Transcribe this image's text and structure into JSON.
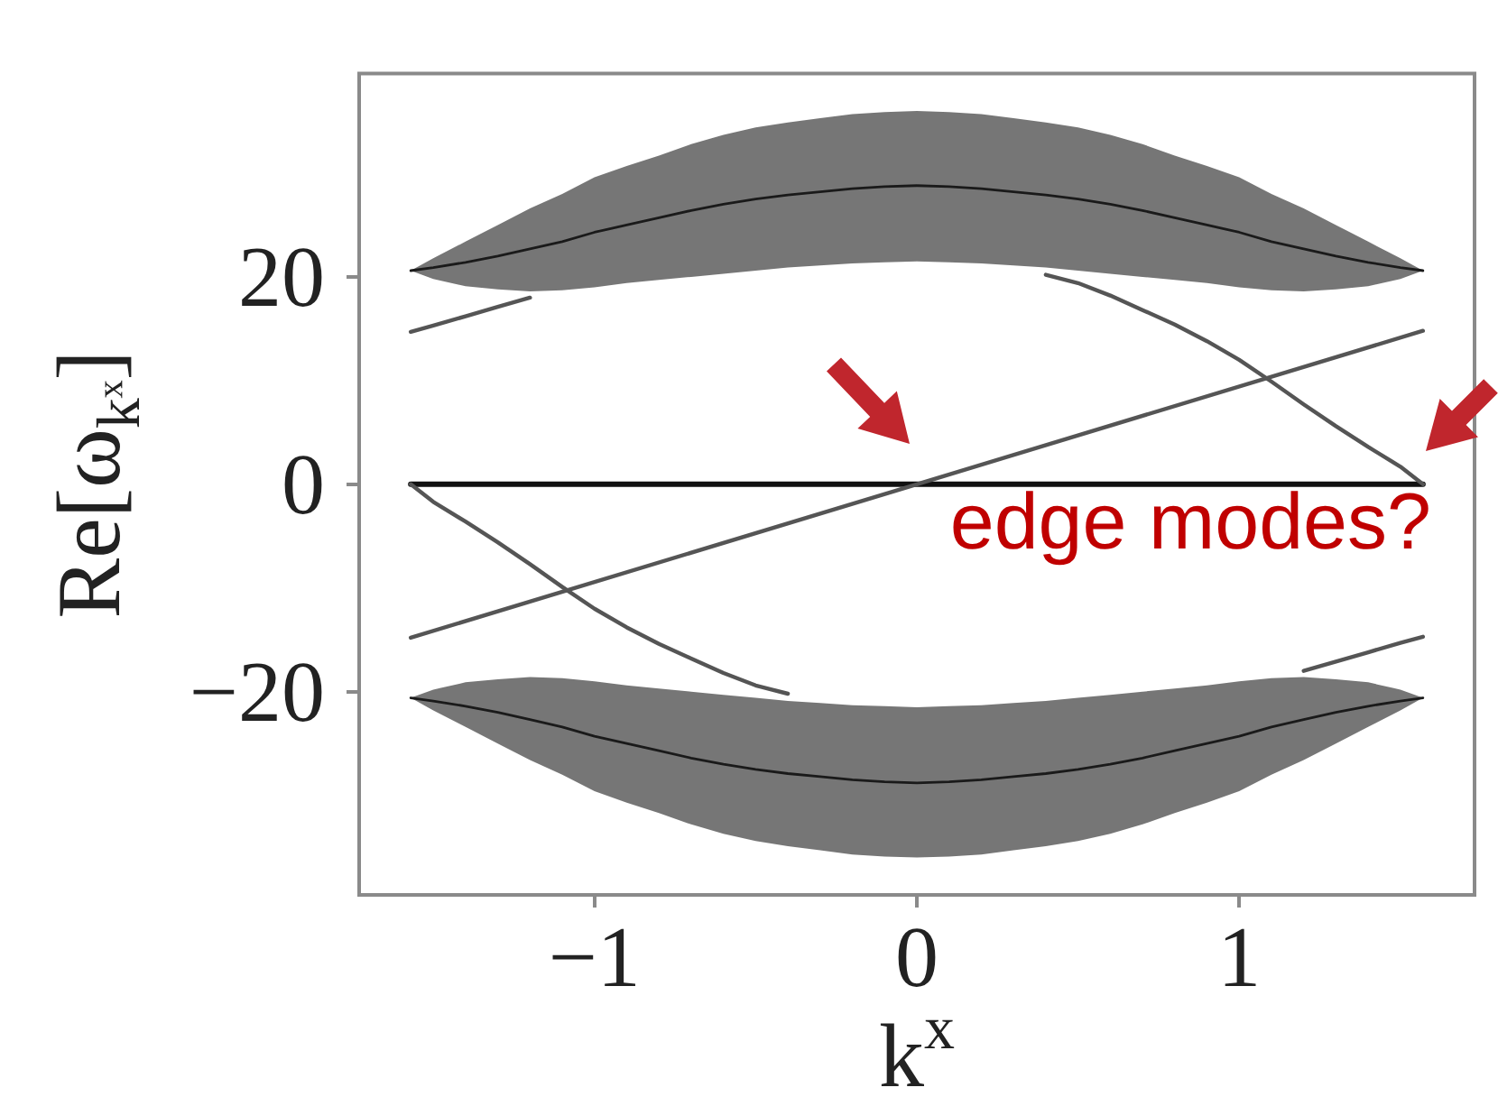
{
  "chart_data": {
    "type": "line",
    "xlabel": "k$^{x}$",
    "ylabel": "Re[ω$_{kˣ}$]",
    "annotations": [
      "edge modes?"
    ],
    "x": [
      -1.57,
      -1.5,
      -1.4,
      -1.3,
      -1.2,
      -1.1,
      -1.0,
      -0.9,
      -0.8,
      -0.7,
      -0.6,
      -0.5,
      -0.4,
      -0.3,
      -0.2,
      -0.1,
      0,
      0.1,
      0.2,
      0.3,
      0.4,
      0.5,
      0.6,
      0.7,
      0.8,
      0.9,
      1.0,
      1.1,
      1.2,
      1.3,
      1.4,
      1.5,
      1.57
    ],
    "xlim": [
      -1.73,
      1.73
    ],
    "xticks": [
      {
        "value": -1,
        "label": "−1"
      },
      0,
      1
    ],
    "ylim": [
      -39.6,
      39.6
    ],
    "yticks": [
      {
        "value": -20,
        "label": "−20"
      },
      0,
      20
    ],
    "marker": "none",
    "line_style": "solid",
    "series": [
      {
        "color": "#1a1a1a",
        "values": [
          20.6,
          20.9,
          21.4,
          22.0,
          22.7,
          23.4,
          24.3,
          25.0,
          25.7,
          26.4,
          27.0,
          27.5,
          27.9,
          28.2,
          28.5,
          28.7,
          28.8,
          28.7,
          28.5,
          28.2,
          27.9,
          27.5,
          27.0,
          26.4,
          25.7,
          25.0,
          24.3,
          23.4,
          22.7,
          22.0,
          21.4,
          20.9,
          20.6
        ],
        "lower": [
          20.6,
          19.8,
          19.1,
          18.8,
          18.6,
          18.7,
          19.0,
          19.4,
          19.7,
          20.0,
          20.3,
          20.6,
          20.9,
          21.1,
          21.3,
          21.4,
          21.5,
          21.4,
          21.3,
          21.1,
          20.9,
          20.6,
          20.3,
          20.0,
          19.7,
          19.4,
          19.0,
          18.7,
          18.6,
          18.8,
          19.1,
          19.8,
          20.6
        ],
        "upper": [
          20.6,
          21.8,
          23.4,
          25.0,
          26.6,
          28.0,
          29.6,
          30.7,
          31.7,
          32.8,
          33.7,
          34.4,
          34.9,
          35.3,
          35.7,
          35.9,
          36.0,
          35.9,
          35.7,
          35.3,
          34.9,
          34.4,
          33.7,
          32.8,
          31.7,
          30.7,
          29.6,
          28.0,
          26.6,
          25.0,
          23.4,
          21.8,
          20.6
        ]
      },
      {
        "color": "#1a1a1a",
        "values": [
          -20.6,
          -20.9,
          -21.4,
          -22.0,
          -22.7,
          -23.4,
          -24.3,
          -25.0,
          -25.7,
          -26.4,
          -27.0,
          -27.5,
          -27.9,
          -28.2,
          -28.5,
          -28.7,
          -28.8,
          -28.7,
          -28.5,
          -28.2,
          -27.9,
          -27.5,
          -27.0,
          -26.4,
          -25.7,
          -25.0,
          -24.3,
          -23.4,
          -22.7,
          -22.0,
          -21.4,
          -20.9,
          -20.6
        ],
        "lower": [
          -20.6,
          -21.8,
          -23.4,
          -25.0,
          -26.6,
          -28.0,
          -29.6,
          -30.7,
          -31.7,
          -32.8,
          -33.7,
          -34.4,
          -34.9,
          -35.3,
          -35.7,
          -35.9,
          -36.0,
          -35.9,
          -35.7,
          -35.3,
          -34.9,
          -34.4,
          -33.7,
          -32.8,
          -31.7,
          -30.7,
          -29.6,
          -28.0,
          -26.6,
          -25.0,
          -23.4,
          -21.8,
          -20.6
        ],
        "upper": [
          -20.6,
          -19.8,
          -19.1,
          -18.8,
          -18.6,
          -18.7,
          -19.0,
          -19.4,
          -19.7,
          -20.0,
          -20.3,
          -20.6,
          -20.9,
          -21.1,
          -21.3,
          -21.4,
          -21.5,
          -21.4,
          -21.3,
          -21.1,
          -20.9,
          -20.6,
          -20.3,
          -20.0,
          -19.7,
          -19.4,
          -19.0,
          -18.7,
          -18.6,
          -18.8,
          -19.1,
          -19.8,
          -20.6
        ]
      },
      {
        "color": "#555555",
        "values": [
          14.7,
          15.3,
          16.2,
          17.1,
          18.0,
          null,
          null,
          null,
          null,
          null,
          null,
          null,
          null,
          null,
          null,
          null,
          null,
          null,
          null,
          null,
          20.2,
          19.4,
          18.2,
          16.8,
          15.4,
          13.8,
          12.0,
          9.9,
          7.7,
          5.6,
          3.6,
          1.7,
          0
        ]
      },
      {
        "color": "#555555",
        "values": [
          0,
          -1.7,
          -3.6,
          -5.6,
          -7.7,
          -9.9,
          -12.0,
          -13.8,
          -15.4,
          -16.8,
          -18.2,
          -19.4,
          -20.2,
          null,
          null,
          null,
          null,
          null,
          null,
          null,
          null,
          null,
          null,
          null,
          null,
          null,
          null,
          null,
          -18.0,
          -17.1,
          -16.2,
          -15.3,
          -14.7
        ]
      },
      {
        "color": "#555555",
        "x": [
          -1.57,
          0,
          1.57
        ],
        "values": [
          -14.8,
          0,
          14.8
        ]
      },
      {
        "color": "#111111",
        "x": [
          -1.57,
          1.57
        ],
        "values": [
          0,
          0
        ]
      }
    ]
  }
}
